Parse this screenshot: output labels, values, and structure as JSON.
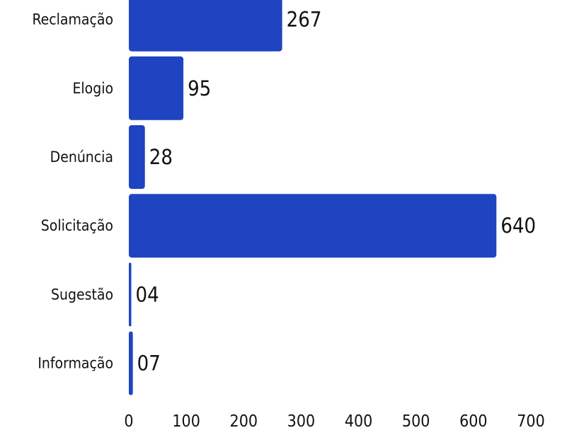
{
  "chart_data": {
    "type": "bar",
    "orientation": "horizontal",
    "categories": [
      "Reclamação",
      "Elogio",
      "Denúncia",
      "Solicitação",
      "Sugestão",
      "Informação"
    ],
    "values": [
      267,
      95,
      28,
      640,
      4,
      7
    ],
    "value_labels": [
      "267",
      "95",
      "28",
      "640",
      "04",
      "07"
    ],
    "xlim": [
      0,
      700
    ],
    "x_ticks": [
      "0",
      "100",
      "200",
      "300",
      "400",
      "500",
      "600",
      "700"
    ],
    "grid": false,
    "legend": "none",
    "bar_color": "#1e44c1"
  }
}
